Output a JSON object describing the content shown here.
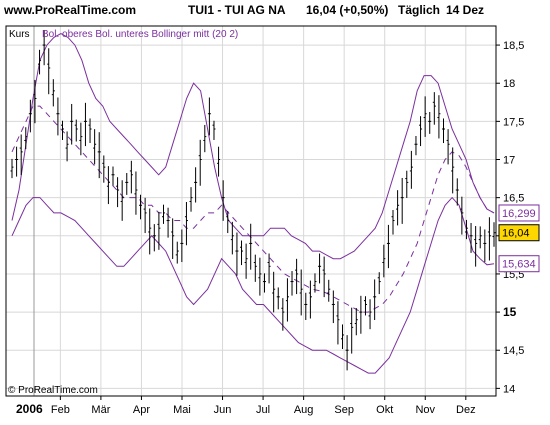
{
  "header": {
    "site": "www.ProRealTime.com",
    "instrument": "TUI1 - TUI AG NA",
    "price_change": "16,04 (+0,50%)",
    "period": "Täglich",
    "date": "14 Dez"
  },
  "panel": {
    "left_label": "Kurs",
    "legend": "Bol. oberes Bol. unteres Bollinger mitt (20 2)",
    "copyright": "© ProRealTime.com"
  },
  "colors": {
    "bollinger": "#7b2f9e",
    "grid": "#d8d8d8",
    "price_tag_fill": "#ffd700",
    "price_tag_border": "#000000"
  },
  "chart_data": {
    "type": "line",
    "x_axis": {
      "year_label": "2006",
      "months": [
        "Feb",
        "Mär",
        "Apr",
        "Mai",
        "Jun",
        "Jul",
        "Aug",
        "Sep",
        "Okt",
        "Nov",
        "Dez"
      ]
    },
    "y_axis": {
      "ticks": [
        14,
        14.5,
        15,
        15.5,
        16,
        16.5,
        17,
        17.5,
        18,
        18.5
      ],
      "tick_labels": [
        "14",
        "14,5",
        "15",
        "15,5",
        "16",
        "16,5",
        "17",
        "17,5",
        "18",
        "18,5"
      ],
      "range": [
        13.9,
        18.75
      ]
    },
    "grid": true,
    "price_tags": [
      {
        "label": "16,299",
        "value": 16.299,
        "style": "upper"
      },
      {
        "label": "16,04",
        "value": 16.04,
        "style": "current"
      },
      {
        "label": "15,634",
        "value": 15.634,
        "style": "lower"
      }
    ],
    "series": {
      "price_bars": [
        16.9,
        17.0,
        17.1,
        17.3,
        17.6,
        17.8,
        18.3,
        18.5,
        18.2,
        17.9,
        17.6,
        17.4,
        17.2,
        17.5,
        17.4,
        17.3,
        17.5,
        17.4,
        17.2,
        17.1,
        16.9,
        16.7,
        16.8,
        16.6,
        16.5,
        16.7,
        16.8,
        16.6,
        16.4,
        16.3,
        16.1,
        16.0,
        16.1,
        16.3,
        16.2,
        16.0,
        15.8,
        15.9,
        16.2,
        16.5,
        16.7,
        17.0,
        17.3,
        17.6,
        17.4,
        17.0,
        16.5,
        16.2,
        16.0,
        15.8,
        15.8,
        15.7,
        15.9,
        15.6,
        15.5,
        15.4,
        15.6,
        15.3,
        15.2,
        15.0,
        15.2,
        15.4,
        15.5,
        15.3,
        15.1,
        15.2,
        15.4,
        15.6,
        15.5,
        15.3,
        15.1,
        14.9,
        14.7,
        14.5,
        14.8,
        14.9,
        15.0,
        15.1,
        15.0,
        15.2,
        15.4,
        15.7,
        15.9,
        16.2,
        16.4,
        16.5,
        16.7,
        16.9,
        17.2,
        17.4,
        17.6,
        17.5,
        17.7,
        17.6,
        17.4,
        17.2,
        16.9,
        16.6,
        16.3,
        16.1,
        16.0,
        15.9,
        16.0,
        15.9,
        16.0,
        16.04
      ],
      "middle": [
        17.1,
        17.3,
        17.5,
        17.7,
        17.7,
        17.6,
        17.5,
        17.4,
        17.3,
        17.2,
        17.1,
        17.0,
        16.9,
        16.8,
        16.7,
        16.6,
        16.5,
        16.5,
        16.5,
        16.4,
        16.4,
        16.3,
        16.3,
        16.2,
        16.2,
        16.1,
        16.1,
        16.2,
        16.3,
        16.3,
        16.4,
        16.3,
        16.2,
        16.1,
        16.0,
        15.9,
        15.8,
        15.7,
        15.6,
        15.5,
        15.45,
        15.4,
        15.35,
        15.3,
        15.28,
        15.25,
        15.2,
        15.15,
        15.1,
        15.05,
        15.0,
        15.0,
        15.05,
        15.1,
        15.2,
        15.35,
        15.5,
        15.7,
        15.9,
        16.2,
        16.5,
        16.8,
        17.0,
        17.1,
        17.05,
        16.9,
        16.7,
        16.5,
        16.35,
        16.3
      ],
      "upper": [
        16.2,
        16.6,
        17.2,
        17.8,
        18.3,
        18.5,
        18.6,
        18.65,
        18.6,
        18.5,
        18.3,
        18.0,
        17.8,
        17.7,
        17.5,
        17.4,
        17.3,
        17.2,
        17.1,
        17.0,
        16.9,
        16.8,
        16.9,
        17.2,
        17.5,
        17.8,
        18.0,
        17.9,
        17.4,
        16.9,
        16.5,
        16.2,
        16.1,
        16.0,
        16.0,
        16.0,
        16.0,
        16.1,
        16.1,
        16.1,
        16.0,
        15.95,
        15.9,
        15.8,
        15.8,
        15.75,
        15.7,
        15.7,
        15.75,
        15.8,
        15.9,
        16.0,
        16.1,
        16.3,
        16.6,
        16.9,
        17.2,
        17.5,
        17.9,
        18.1,
        18.1,
        18.0,
        17.7,
        17.4,
        17.2,
        17.0,
        16.7,
        16.5,
        16.35,
        16.3
      ],
      "lower": [
        16.0,
        16.2,
        16.4,
        16.5,
        16.5,
        16.4,
        16.3,
        16.3,
        16.25,
        16.2,
        16.1,
        16.0,
        15.9,
        15.8,
        15.7,
        15.6,
        15.6,
        15.7,
        15.8,
        15.9,
        16.0,
        15.9,
        15.8,
        15.6,
        15.4,
        15.2,
        15.1,
        15.2,
        15.3,
        15.5,
        15.7,
        15.6,
        15.5,
        15.3,
        15.2,
        15.1,
        15.1,
        15.0,
        14.9,
        14.8,
        14.7,
        14.6,
        14.55,
        14.5,
        14.5,
        14.5,
        14.45,
        14.4,
        14.35,
        14.3,
        14.25,
        14.2,
        14.2,
        14.3,
        14.4,
        14.6,
        14.8,
        15.0,
        15.3,
        15.6,
        15.9,
        16.2,
        16.4,
        16.5,
        16.4,
        16.1,
        15.8,
        15.7,
        15.62,
        15.634
      ]
    }
  }
}
